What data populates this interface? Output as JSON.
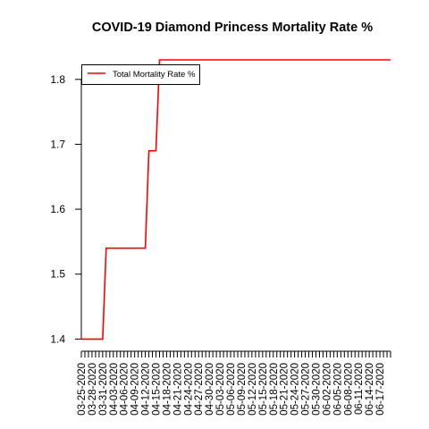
{
  "chart_data": {
    "type": "line",
    "title": "COVID-19 Diamond Princess Mortality Rate %",
    "xlabel": "",
    "ylabel": "",
    "ylim": [
      1.395,
      1.83
    ],
    "yticks": [
      1.4,
      1.5,
      1.6,
      1.7,
      1.8
    ],
    "ytick_labels": [
      "1.4",
      "1.5",
      "1.6",
      "1.7",
      "1.8"
    ],
    "x_range": [
      "03-25-2020",
      "06-20-2020"
    ],
    "xtick_labels": [
      "03-25-2020",
      "03-28-2020",
      "03-31-2020",
      "04-03-2020",
      "04-06-2020",
      "04-09-2020",
      "04-12-2020",
      "04-15-2020",
      "04-18-2020",
      "04-21-2020",
      "04-24-2020",
      "04-27-2020",
      "04-30-2020",
      "05-03-2020",
      "05-06-2020",
      "05-09-2020",
      "05-12-2020",
      "05-15-2020",
      "05-18-2020",
      "05-21-2020",
      "05-24-2020",
      "05-27-2020",
      "05-30-2020",
      "06-02-2020",
      "06-05-2020",
      "06-08-2020",
      "06-11-2020",
      "06-14-2020",
      "06-17-2020"
    ],
    "legend_position": "top-left",
    "grid": false,
    "series": [
      {
        "name": "Total Mortality Rate %",
        "color": "#ff0000",
        "points": [
          {
            "x": "03-25-2020",
            "y": 1.4
          },
          {
            "x": "03-31-2020",
            "y": 1.4
          },
          {
            "x": "04-01-2020",
            "y": 1.54
          },
          {
            "x": "04-12-2020",
            "y": 1.54
          },
          {
            "x": "04-13-2020",
            "y": 1.69
          },
          {
            "x": "04-15-2020",
            "y": 1.69
          },
          {
            "x": "04-16-2020",
            "y": 1.83
          },
          {
            "x": "06-20-2020",
            "y": 1.83
          }
        ]
      }
    ]
  }
}
